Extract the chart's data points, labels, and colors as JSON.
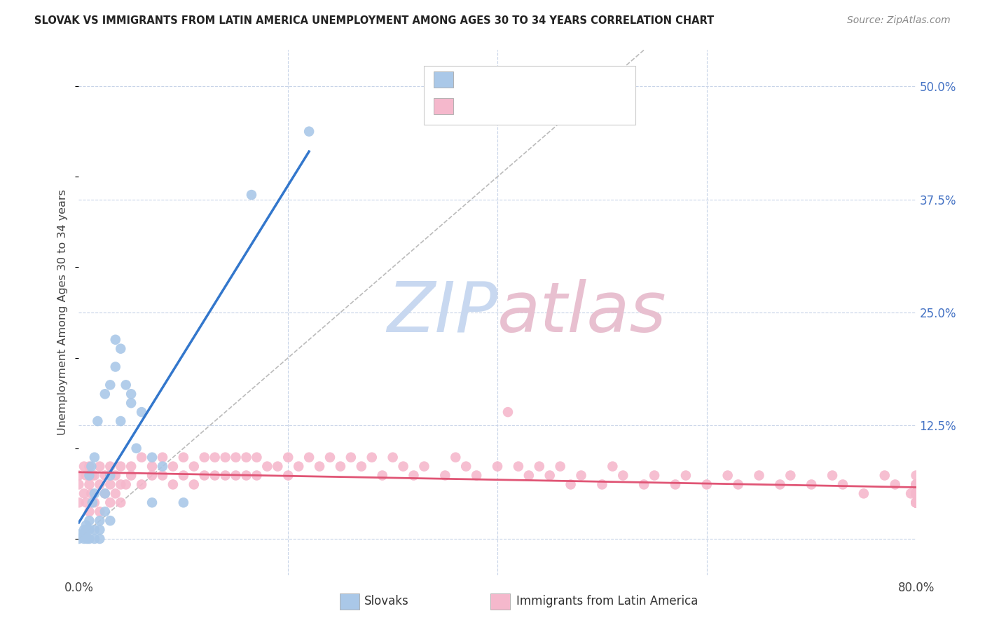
{
  "title": "SLOVAK VS IMMIGRANTS FROM LATIN AMERICA UNEMPLOYMENT AMONG AGES 30 TO 34 YEARS CORRELATION CHART",
  "source": "Source: ZipAtlas.com",
  "ylabel": "Unemployment Among Ages 30 to 34 years",
  "xlim": [
    0,
    0.8
  ],
  "ylim": [
    -0.04,
    0.54
  ],
  "ytick_positions": [
    0.0,
    0.125,
    0.25,
    0.375,
    0.5
  ],
  "ytick_labels": [
    "",
    "12.5%",
    "25.0%",
    "37.5%",
    "50.0%"
  ],
  "blue_color": "#aac8e8",
  "blue_line_color": "#3377cc",
  "pink_color": "#f5b8cc",
  "pink_line_color": "#e05575",
  "ref_line_color": "#bbbbbb",
  "grid_color": "#c8d4e8",
  "background_color": "#ffffff",
  "watermark_blue": "#c8d8f0",
  "watermark_pink": "#e8c0d0",
  "blue_x": [
    0.0,
    0.0,
    0.005,
    0.005,
    0.005,
    0.007,
    0.007,
    0.008,
    0.008,
    0.01,
    0.01,
    0.01,
    0.01,
    0.012,
    0.013,
    0.015,
    0.015,
    0.015,
    0.015,
    0.018,
    0.02,
    0.02,
    0.02,
    0.025,
    0.025,
    0.025,
    0.03,
    0.03,
    0.03,
    0.035,
    0.035,
    0.04,
    0.04,
    0.045,
    0.05,
    0.05,
    0.055,
    0.06,
    0.07,
    0.07,
    0.08,
    0.1,
    0.165,
    0.22
  ],
  "blue_y": [
    0.0,
    0.005,
    0.0,
    0.005,
    0.01,
    0.01,
    0.015,
    0.0,
    0.01,
    0.0,
    0.01,
    0.02,
    0.07,
    0.08,
    0.04,
    0.0,
    0.01,
    0.05,
    0.09,
    0.13,
    0.0,
    0.01,
    0.02,
    0.03,
    0.05,
    0.16,
    0.02,
    0.07,
    0.17,
    0.19,
    0.22,
    0.13,
    0.21,
    0.17,
    0.15,
    0.16,
    0.1,
    0.14,
    0.04,
    0.09,
    0.08,
    0.04,
    0.38,
    0.45
  ],
  "pink_x": [
    0.0,
    0.0,
    0.0,
    0.005,
    0.005,
    0.007,
    0.007,
    0.01,
    0.01,
    0.01,
    0.012,
    0.013,
    0.015,
    0.015,
    0.02,
    0.02,
    0.02,
    0.025,
    0.025,
    0.03,
    0.03,
    0.03,
    0.035,
    0.035,
    0.04,
    0.04,
    0.04,
    0.045,
    0.05,
    0.05,
    0.06,
    0.06,
    0.07,
    0.07,
    0.08,
    0.08,
    0.09,
    0.09,
    0.1,
    0.1,
    0.11,
    0.11,
    0.12,
    0.12,
    0.13,
    0.13,
    0.14,
    0.14,
    0.15,
    0.15,
    0.16,
    0.16,
    0.17,
    0.17,
    0.18,
    0.19,
    0.2,
    0.2,
    0.21,
    0.22,
    0.23,
    0.24,
    0.25,
    0.26,
    0.27,
    0.28,
    0.29,
    0.3,
    0.31,
    0.32,
    0.33,
    0.35,
    0.36,
    0.37,
    0.38,
    0.4,
    0.41,
    0.42,
    0.43,
    0.44,
    0.45,
    0.46,
    0.47,
    0.48,
    0.5,
    0.51,
    0.52,
    0.54,
    0.55,
    0.57,
    0.58,
    0.6,
    0.62,
    0.63,
    0.65,
    0.67,
    0.68,
    0.7,
    0.72,
    0.73,
    0.75,
    0.77,
    0.78,
    0.795,
    0.8,
    0.8,
    0.8,
    0.8,
    0.8,
    0.8,
    0.8,
    0.8,
    0.8,
    0.8,
    0.8,
    0.8,
    0.8,
    0.8,
    0.8,
    0.8,
    0.8,
    0.8,
    0.8,
    0.8,
    0.8,
    0.8,
    0.8,
    0.8,
    0.8,
    0.8,
    0.8,
    0.8,
    0.8,
    0.8,
    0.8,
    0.8,
    0.8
  ],
  "pink_y": [
    0.04,
    0.06,
    0.07,
    0.05,
    0.08,
    0.04,
    0.07,
    0.03,
    0.06,
    0.08,
    0.05,
    0.07,
    0.04,
    0.07,
    0.03,
    0.06,
    0.08,
    0.05,
    0.07,
    0.04,
    0.06,
    0.08,
    0.05,
    0.07,
    0.04,
    0.06,
    0.08,
    0.06,
    0.07,
    0.08,
    0.06,
    0.09,
    0.07,
    0.08,
    0.07,
    0.09,
    0.06,
    0.08,
    0.07,
    0.09,
    0.06,
    0.08,
    0.07,
    0.09,
    0.07,
    0.09,
    0.07,
    0.09,
    0.07,
    0.09,
    0.07,
    0.09,
    0.07,
    0.09,
    0.08,
    0.08,
    0.07,
    0.09,
    0.08,
    0.09,
    0.08,
    0.09,
    0.08,
    0.09,
    0.08,
    0.09,
    0.07,
    0.09,
    0.08,
    0.07,
    0.08,
    0.07,
    0.09,
    0.08,
    0.07,
    0.08,
    0.14,
    0.08,
    0.07,
    0.08,
    0.07,
    0.08,
    0.06,
    0.07,
    0.06,
    0.08,
    0.07,
    0.06,
    0.07,
    0.06,
    0.07,
    0.06,
    0.07,
    0.06,
    0.07,
    0.06,
    0.07,
    0.06,
    0.07,
    0.06,
    0.05,
    0.07,
    0.06,
    0.05,
    0.06,
    0.05,
    0.07,
    0.06,
    0.05,
    0.06,
    0.05,
    0.04,
    0.06,
    0.05,
    0.04,
    0.05,
    0.04,
    0.06,
    0.05,
    0.04,
    0.05,
    0.04,
    0.06,
    0.05,
    0.04,
    0.05,
    0.04,
    0.06,
    0.05,
    0.04,
    0.05,
    0.04,
    0.05,
    0.04,
    0.05,
    0.04,
    0.05
  ]
}
